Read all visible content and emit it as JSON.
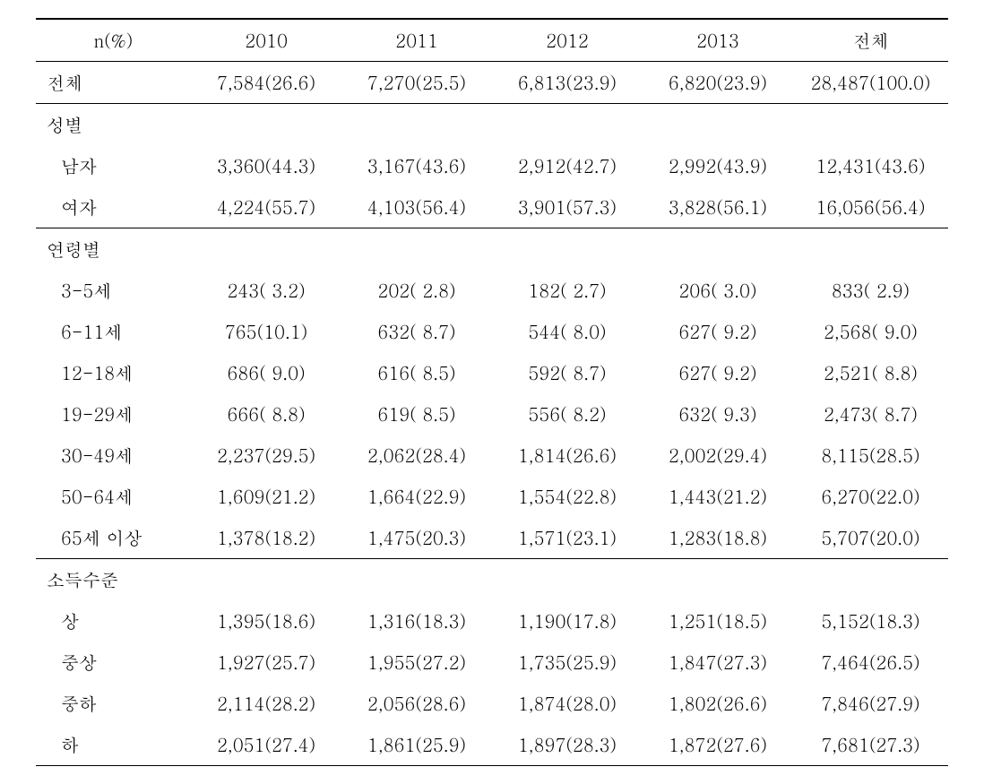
{
  "headers": {
    "col1": "n(%)",
    "col2": "2010",
    "col3": "2011",
    "col4": "2012",
    "col5": "2013",
    "col6": "전체"
  },
  "total_row": {
    "label": "전체",
    "y2010": "7,584(26.6)",
    "y2011": "7,270(25.5)",
    "y2012": "6,813(23.9)",
    "y2013": "6,820(23.9)",
    "total": "28,487(100.0)"
  },
  "gender": {
    "header": "성별",
    "male": {
      "label": "남자",
      "y2010": "3,360(44.3)",
      "y2011": "3,167(43.6)",
      "y2012": "2,912(42.7)",
      "y2013": "2,992(43.9)",
      "total": "12,431(43.6)"
    },
    "female": {
      "label": "여자",
      "y2010": "4,224(55.7)",
      "y2011": "4,103(56.4)",
      "y2012": "3,901(57.3)",
      "y2013": "3,828(56.1)",
      "total": "16,056(56.4)"
    }
  },
  "age": {
    "header": "연령별",
    "a3_5": {
      "label": "3-5세",
      "y2010": "243( 3.2)",
      "y2011": "202( 2.8)",
      "y2012": "182( 2.7)",
      "y2013": "206( 3.0)",
      "total": "833( 2.9)"
    },
    "a6_11": {
      "label": "6-11세",
      "y2010": "765(10.1)",
      "y2011": "632( 8.7)",
      "y2012": "544( 8.0)",
      "y2013": "627( 9.2)",
      "total": "2,568( 9.0)"
    },
    "a12_18": {
      "label": "12-18세",
      "y2010": "686( 9.0)",
      "y2011": "616( 8.5)",
      "y2012": "592( 8.7)",
      "y2013": "627( 9.2)",
      "total": "2,521( 8.8)"
    },
    "a19_29": {
      "label": "19-29세",
      "y2010": "666( 8.8)",
      "y2011": "619( 8.5)",
      "y2012": "556( 8.2)",
      "y2013": "632( 9.3)",
      "total": "2,473( 8.7)"
    },
    "a30_49": {
      "label": "30-49세",
      "y2010": "2,237(29.5)",
      "y2011": "2,062(28.4)",
      "y2012": "1,814(26.6)",
      "y2013": "2,002(29.4)",
      "total": "8,115(28.5)"
    },
    "a50_64": {
      "label": "50-64세",
      "y2010": "1,609(21.2)",
      "y2011": "1,664(22.9)",
      "y2012": "1,554(22.8)",
      "y2013": "1,443(21.2)",
      "total": "6,270(22.0)"
    },
    "a65": {
      "label": "65세 이상",
      "y2010": "1,378(18.2)",
      "y2011": "1,475(20.3)",
      "y2012": "1,571(23.1)",
      "y2013": "1,283(18.8)",
      "total": "5,707(20.0)"
    }
  },
  "income": {
    "header": "소득수준",
    "high": {
      "label": "상",
      "y2010": "1,395(18.6)",
      "y2011": "1,316(18.3)",
      "y2012": "1,190(17.8)",
      "y2013": "1,251(18.5)",
      "total": "5,152(18.3)"
    },
    "midhigh": {
      "label": "중상",
      "y2010": "1,927(25.7)",
      "y2011": "1,955(27.2)",
      "y2012": "1,735(25.9)",
      "y2013": "1,847(27.3)",
      "total": "7,464(26.5)"
    },
    "midlow": {
      "label": "중하",
      "y2010": "2,114(28.2)",
      "y2011": "2,056(28.6)",
      "y2012": "1,874(28.0)",
      "y2013": "1,802(26.6)",
      "total": "7,846(27.9)"
    },
    "low": {
      "label": "하",
      "y2010": "2,051(27.4)",
      "y2011": "1,861(25.9)",
      "y2012": "1,897(28.3)",
      "y2013": "1,872(27.6)",
      "total": "7,681(27.3)"
    }
  }
}
